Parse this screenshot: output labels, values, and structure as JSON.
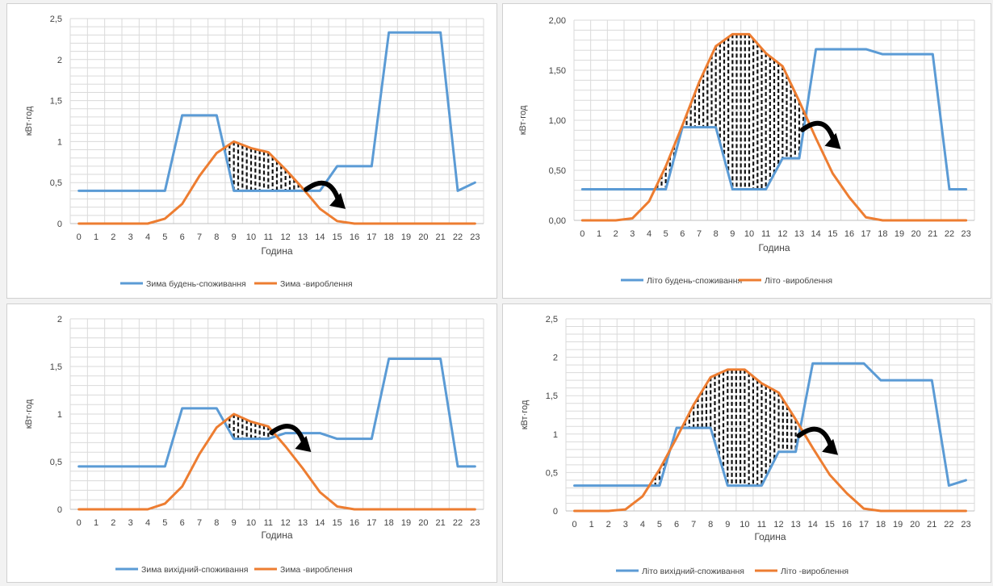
{
  "chart_data": [
    {
      "type": "line",
      "xlabel": "Година",
      "ylabel": "кВт·год",
      "ylim": [
        0,
        2.5
      ],
      "yticks": [
        "0",
        "0,5",
        "1",
        "1,5",
        "2",
        "2,5"
      ],
      "x": [
        0,
        1,
        2,
        3,
        4,
        5,
        6,
        7,
        8,
        9,
        10,
        11,
        12,
        13,
        14,
        15,
        16,
        17,
        18,
        19,
        20,
        21,
        22,
        23
      ],
      "grid": true,
      "legend_position": "bottom",
      "hatched_surplus": true,
      "series": [
        {
          "name": "Зима будень-споживання",
          "color": "#5b9bd5",
          "values": [
            0.4,
            0.4,
            0.4,
            0.4,
            0.4,
            0.4,
            1.32,
            1.32,
            1.32,
            0.4,
            0.4,
            0.4,
            0.4,
            0.4,
            0.4,
            0.7,
            0.7,
            0.7,
            2.33,
            2.33,
            2.33,
            2.33,
            0.4,
            0.5
          ]
        },
        {
          "name": "Зима -вироблення",
          "color": "#ed7d31",
          "values": [
            0,
            0,
            0,
            0,
            0,
            0.06,
            0.24,
            0.58,
            0.86,
            1.0,
            0.92,
            0.87,
            0.66,
            0.43,
            0.18,
            0.03,
            0,
            0,
            0,
            0,
            0,
            0,
            0,
            0
          ]
        }
      ]
    },
    {
      "type": "line",
      "xlabel": "Година",
      "ylabel": "кВт·год",
      "ylim": [
        0,
        2
      ],
      "yticks": [
        "0,00",
        "0,50",
        "1,00",
        "1,50",
        "2,00"
      ],
      "x": [
        0,
        1,
        2,
        3,
        4,
        5,
        6,
        7,
        8,
        9,
        10,
        11,
        12,
        13,
        14,
        15,
        16,
        17,
        18,
        19,
        20,
        21,
        22,
        23
      ],
      "grid": true,
      "legend_position": "bottom",
      "hatched_surplus": true,
      "series": [
        {
          "name": "Літо будень-споживання",
          "color": "#5b9bd5",
          "values": [
            0.31,
            0.31,
            0.31,
            0.31,
            0.31,
            0.31,
            0.93,
            0.93,
            0.93,
            0.31,
            0.31,
            0.31,
            0.62,
            0.62,
            1.71,
            1.71,
            1.71,
            1.71,
            1.66,
            1.66,
            1.66,
            1.66,
            0.31,
            0.31
          ]
        },
        {
          "name": "Літо -вироблення",
          "color": "#ed7d31",
          "values": [
            0,
            0,
            0,
            0.02,
            0.19,
            0.54,
            0.95,
            1.38,
            1.74,
            1.86,
            1.86,
            1.67,
            1.54,
            1.19,
            0.82,
            0.47,
            0.23,
            0.03,
            0,
            0,
            0,
            0,
            0,
            0
          ]
        }
      ]
    },
    {
      "type": "line",
      "xlabel": "Година",
      "ylabel": "кВт·год",
      "ylim": [
        0,
        2
      ],
      "yticks": [
        "0",
        "0,5",
        "1",
        "1,5",
        "2"
      ],
      "x": [
        0,
        1,
        2,
        3,
        4,
        5,
        6,
        7,
        8,
        9,
        10,
        11,
        12,
        13,
        14,
        15,
        16,
        17,
        18,
        19,
        20,
        21,
        22,
        23
      ],
      "grid": true,
      "legend_position": "bottom",
      "hatched_surplus": true,
      "series": [
        {
          "name": "Зима вихідний-споживання",
          "color": "#5b9bd5",
          "values": [
            0.45,
            0.45,
            0.45,
            0.45,
            0.45,
            0.45,
            1.06,
            1.06,
            1.06,
            0.74,
            0.74,
            0.74,
            0.8,
            0.8,
            0.8,
            0.74,
            0.74,
            0.74,
            1.58,
            1.58,
            1.58,
            1.58,
            0.45,
            0.45
          ]
        },
        {
          "name": "Зима -вироблення",
          "color": "#ed7d31",
          "values": [
            0,
            0,
            0,
            0,
            0,
            0.06,
            0.24,
            0.58,
            0.86,
            1.0,
            0.92,
            0.87,
            0.66,
            0.43,
            0.18,
            0.03,
            0,
            0,
            0,
            0,
            0,
            0,
            0,
            0
          ]
        }
      ]
    },
    {
      "type": "line",
      "xlabel": "Година",
      "ylabel": "кВт·год",
      "ylim": [
        0,
        2.5
      ],
      "yticks": [
        "0",
        "0,5",
        "1",
        "1,5",
        "2",
        "2,5"
      ],
      "x": [
        0,
        1,
        2,
        3,
        4,
        5,
        6,
        7,
        8,
        9,
        10,
        11,
        12,
        13,
        14,
        15,
        16,
        17,
        18,
        19,
        20,
        21,
        22,
        23
      ],
      "grid": true,
      "legend_position": "bottom",
      "hatched_surplus": true,
      "series": [
        {
          "name": "Літо вихідний-споживання",
          "color": "#5b9bd5",
          "values": [
            0.33,
            0.33,
            0.33,
            0.33,
            0.33,
            0.33,
            1.08,
            1.08,
            1.08,
            0.33,
            0.33,
            0.33,
            0.77,
            0.77,
            1.92,
            1.92,
            1.92,
            1.92,
            1.7,
            1.7,
            1.7,
            1.7,
            0.33,
            0.4
          ]
        },
        {
          "name": "Літо -вироблення",
          "color": "#ed7d31",
          "values": [
            0,
            0,
            0,
            0.02,
            0.19,
            0.54,
            0.95,
            1.38,
            1.74,
            1.84,
            1.84,
            1.66,
            1.54,
            1.19,
            0.82,
            0.47,
            0.23,
            0.03,
            0,
            0,
            0,
            0,
            0,
            0
          ]
        }
      ]
    }
  ]
}
